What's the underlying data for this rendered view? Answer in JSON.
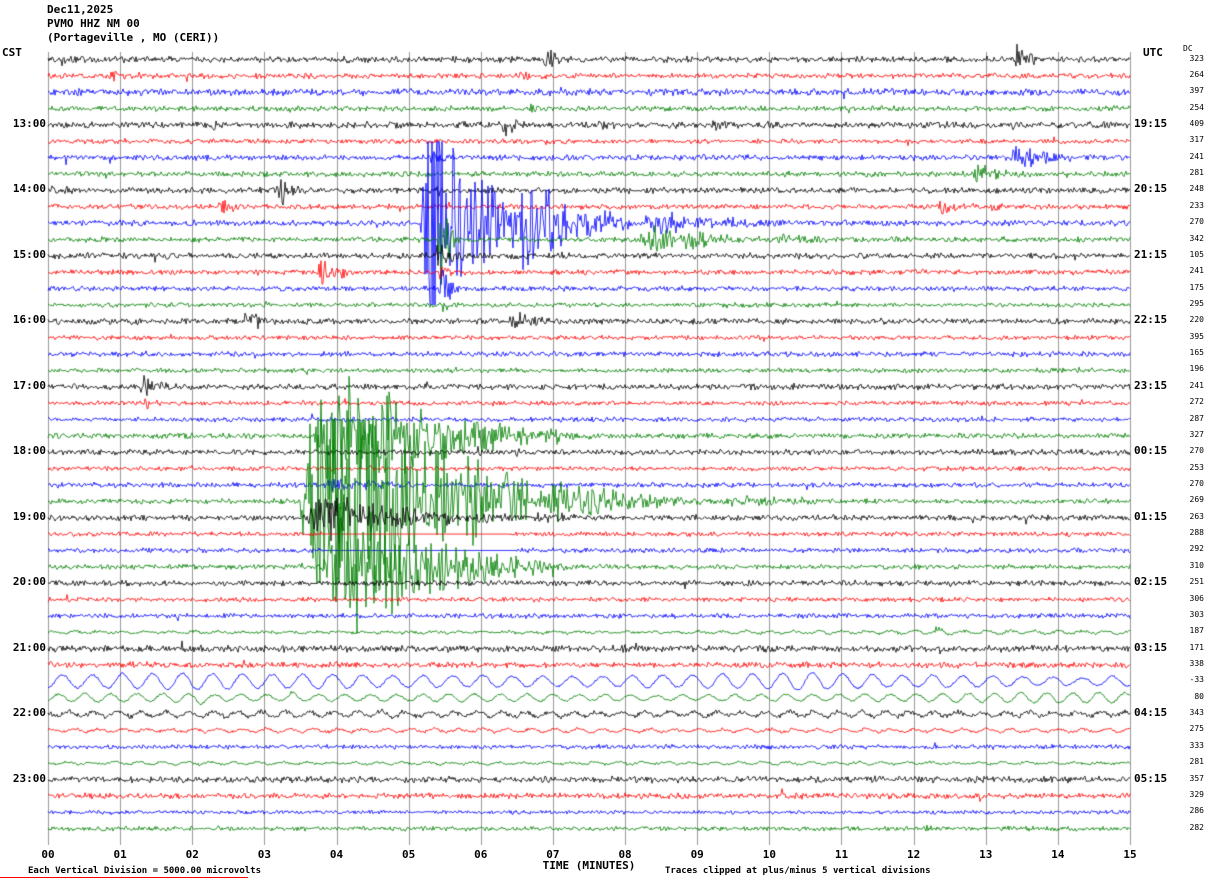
{
  "header": {
    "date": "Dec11,2025",
    "station": "PVMO HHZ NM 00",
    "location": "(Portageville , MO (CERI))"
  },
  "axes": {
    "left_tz": "CST",
    "right_tz": "UTC",
    "dc_label": "DC",
    "xlabel": "TIME (MINUTES)",
    "x_ticks": [
      "00",
      "01",
      "02",
      "03",
      "04",
      "05",
      "06",
      "07",
      "08",
      "09",
      "10",
      "11",
      "12",
      "13",
      "14",
      "15"
    ]
  },
  "footer": {
    "left_note": "Each Vertical Division = 5000.00 microvolts",
    "right_note": "Traces clipped at plus/minus 5 vertical divisions"
  },
  "chart_data": {
    "type": "line",
    "title": "PVMO HHZ NM 00 helicorder, Dec11,2025, Portageville MO (CERI)",
    "x_range_minutes": [
      0,
      15
    ],
    "minutes_per_row": 15,
    "clip_divisions": 5,
    "colors": {
      "k": "#000000",
      "r": "#ff0000",
      "b": "#0000ff",
      "g": "#007f00"
    },
    "rows": [
      {
        "c": "k",
        "dc": "323",
        "base": 2.4,
        "ev": [
          [
            0.15,
            0.45,
            5
          ],
          [
            6.85,
            7.35,
            9
          ],
          [
            13.35,
            13.85,
            13
          ]
        ]
      },
      {
        "c": "r",
        "dc": "264",
        "base": 2.0,
        "ev": [
          [
            0.85,
            1.25,
            6
          ],
          [
            6.5,
            6.9,
            7
          ]
        ]
      },
      {
        "c": "b",
        "dc": "397",
        "base": 2.6,
        "ev": [
          [
            7.05,
            7.45,
            4
          ]
        ]
      },
      {
        "c": "g",
        "dc": "254",
        "base": 2.0,
        "ev": [
          [
            3.3,
            3.7,
            5
          ],
          [
            6.65,
            7.05,
            5
          ]
        ]
      },
      {
        "c": "k",
        "dc": "409",
        "cst": "13:00",
        "utc": "19:15",
        "base": 2.4,
        "ev": [
          [
            2.25,
            2.65,
            6
          ],
          [
            6.25,
            6.75,
            11
          ],
          [
            7.6,
            8.1,
            7
          ],
          [
            9.15,
            9.6,
            6
          ],
          [
            13.3,
            13.8,
            4
          ]
        ]
      },
      {
        "c": "r",
        "dc": "317",
        "base": 1.7,
        "ev": [
          [
            12.4,
            12.75,
            3
          ]
        ]
      },
      {
        "c": "b",
        "dc": "241",
        "base": 2.1,
        "ev": [
          [
            5.25,
            5.75,
            7
          ],
          [
            13.3,
            14.45,
            11
          ]
        ]
      },
      {
        "c": "g",
        "dc": "281",
        "base": 2.0,
        "ev": [
          [
            12.8,
            13.65,
            10
          ]
        ]
      },
      {
        "c": "k",
        "dc": "248",
        "cst": "14:00",
        "utc": "20:15",
        "base": 2.2,
        "ev": [
          [
            0.2,
            0.5,
            4
          ],
          [
            3.15,
            3.65,
            12
          ],
          [
            5.35,
            5.75,
            5
          ]
        ]
      },
      {
        "c": "r",
        "dc": "233",
        "base": 1.9,
        "ev": [
          [
            2.3,
            3.2,
            7
          ],
          [
            12.3,
            12.9,
            7
          ],
          [
            13.05,
            13.5,
            4
          ]
        ]
      },
      {
        "c": "b",
        "dc": "270",
        "base": 2.2,
        "ev": [
          [
            5.15,
            6.35,
            120
          ],
          [
            6.35,
            8.1,
            40
          ],
          [
            8.1,
            10.8,
            10
          ]
        ]
      },
      {
        "c": "g",
        "dc": "342",
        "base": 2.0,
        "ev": [
          [
            5.4,
            5.7,
            50
          ],
          [
            8.15,
            10.0,
            13
          ],
          [
            10.0,
            11.8,
            5
          ]
        ]
      },
      {
        "c": "k",
        "dc": "105",
        "cst": "15:00",
        "utc": "21:15",
        "base": 2.2,
        "ev": [
          [
            5.35,
            5.85,
            11
          ],
          [
            7.05,
            7.5,
            4
          ]
        ]
      },
      {
        "c": "r",
        "dc": "241",
        "base": 1.9,
        "ev": [
          [
            3.7,
            4.4,
            10
          ],
          [
            5.4,
            5.7,
            8
          ],
          [
            12.05,
            12.5,
            3
          ]
        ]
      },
      {
        "c": "b",
        "dc": "175",
        "base": 1.9,
        "ev": [
          [
            5.4,
            5.7,
            20
          ],
          [
            12.45,
            12.95,
            4
          ]
        ]
      },
      {
        "c": "g",
        "dc": "295",
        "base": 1.7,
        "ev": [
          [
            5.45,
            5.7,
            6
          ]
        ]
      },
      {
        "c": "k",
        "dc": "220",
        "cst": "16:00",
        "utc": "22:15",
        "base": 2.2,
        "ev": [
          [
            2.65,
            3.4,
            9
          ],
          [
            6.35,
            7.25,
            9
          ]
        ]
      },
      {
        "c": "r",
        "dc": "395",
        "base": 1.7,
        "ev": []
      },
      {
        "c": "b",
        "dc": "165",
        "base": 1.9,
        "ev": [
          [
            9.25,
            9.65,
            3
          ]
        ]
      },
      {
        "c": "g",
        "dc": "196",
        "base": 1.7,
        "ev": [
          [
            5.55,
            6.0,
            4
          ]
        ]
      },
      {
        "c": "k",
        "dc": "241",
        "cst": "17:00",
        "utc": "23:15",
        "base": 2.2,
        "ev": [
          [
            1.25,
            1.95,
            9
          ]
        ]
      },
      {
        "c": "r",
        "dc": "272",
        "base": 1.7,
        "ev": [
          [
            1.3,
            1.8,
            5
          ]
        ]
      },
      {
        "c": "b",
        "dc": "287",
        "base": 1.8,
        "ev": []
      },
      {
        "c": "g",
        "dc": "327",
        "base": 2.0,
        "ev": [
          [
            3.65,
            6.4,
            60
          ],
          [
            6.4,
            7.9,
            9
          ]
        ]
      },
      {
        "c": "k",
        "dc": "270",
        "cst": "18:00",
        "utc": "00:15",
        "base": 2.1,
        "ev": [
          [
            5.9,
            6.3,
            5
          ]
        ]
      },
      {
        "c": "r",
        "dc": "253",
        "base": 1.7,
        "ev": []
      },
      {
        "c": "b",
        "dc": "270",
        "base": 1.9,
        "ev": [
          [
            3.6,
            6.6,
            5
          ]
        ]
      },
      {
        "c": "g",
        "dc": "269",
        "base": 2.0,
        "ev": [
          [
            3.45,
            6.65,
            130
          ],
          [
            6.65,
            9.2,
            18
          ],
          [
            9.2,
            11.5,
            6
          ]
        ]
      },
      {
        "c": "k",
        "dc": "263",
        "cst": "19:00",
        "utc": "01:15",
        "base": 2.2,
        "ev": [
          [
            3.5,
            6.6,
            18
          ],
          [
            6.6,
            8.2,
            5
          ]
        ]
      },
      {
        "c": "r",
        "dc": "288",
        "base": 1.7,
        "ev": [
          [
            3.8,
            6.4,
            -1
          ]
        ]
      },
      {
        "c": "b",
        "dc": "292",
        "base": 1.8,
        "ev": [
          [
            3.8,
            6.5,
            -1
          ]
        ]
      },
      {
        "c": "g",
        "dc": "310",
        "base": 1.8,
        "ev": [
          [
            3.75,
            6.55,
            55
          ],
          [
            6.55,
            7.6,
            7
          ]
        ]
      },
      {
        "c": "k",
        "dc": "251",
        "cst": "20:00",
        "utc": "02:15",
        "base": 2.1,
        "ev": []
      },
      {
        "c": "r",
        "dc": "306",
        "base": 1.7,
        "ev": []
      },
      {
        "c": "b",
        "dc": "303",
        "base": 1.8,
        "ev": [
          [
            2.45,
            2.85,
            3
          ]
        ]
      },
      {
        "c": "g",
        "dc": "187",
        "base": 1.7,
        "type": "mix",
        "ev": [
          [
            12.25,
            12.7,
            6
          ]
        ]
      },
      {
        "c": "k",
        "dc": "171",
        "cst": "21:00",
        "utc": "03:15",
        "base": 2.5,
        "ev": [
          [
            7.85,
            8.45,
            5
          ],
          [
            8.95,
            9.35,
            3
          ]
        ]
      },
      {
        "c": "r",
        "dc": "338",
        "base": 2.2,
        "ev": [
          [
            0.9,
            1.35,
            4
          ]
        ]
      },
      {
        "c": "b",
        "dc": "-33",
        "base": 6.5,
        "type": "lf",
        "wl": 30,
        "ev": []
      },
      {
        "c": "g",
        "dc": "80",
        "base": 3.8,
        "type": "lf",
        "wl": 26,
        "ev": [
          [
            2.0,
            2.55,
            9
          ],
          [
            3.3,
            3.85,
            7
          ]
        ]
      },
      {
        "c": "k",
        "dc": "343",
        "cst": "22:00",
        "utc": "04:15",
        "base": 2.8,
        "type": "mix",
        "ev": []
      },
      {
        "c": "r",
        "dc": "275",
        "base": 1.8,
        "type": "mix",
        "ev": []
      },
      {
        "c": "b",
        "dc": "333",
        "base": 1.7,
        "ev": [
          [
            12.25,
            12.65,
            3
          ]
        ]
      },
      {
        "c": "g",
        "dc": "281",
        "base": 1.5,
        "type": "mix",
        "ev": []
      },
      {
        "c": "k",
        "dc": "357",
        "cst": "23:00",
        "utc": "05:15",
        "base": 2.4,
        "ev": []
      },
      {
        "c": "r",
        "dc": "329",
        "base": 2.2,
        "ev": [
          [
            12.85,
            13.45,
            4
          ]
        ]
      },
      {
        "c": "b",
        "dc": "286",
        "base": 1.4,
        "ev": []
      },
      {
        "c": "g",
        "dc": "282",
        "base": 1.7,
        "ev": [
          [
            12.1,
            12.55,
            5
          ]
        ]
      }
    ]
  }
}
